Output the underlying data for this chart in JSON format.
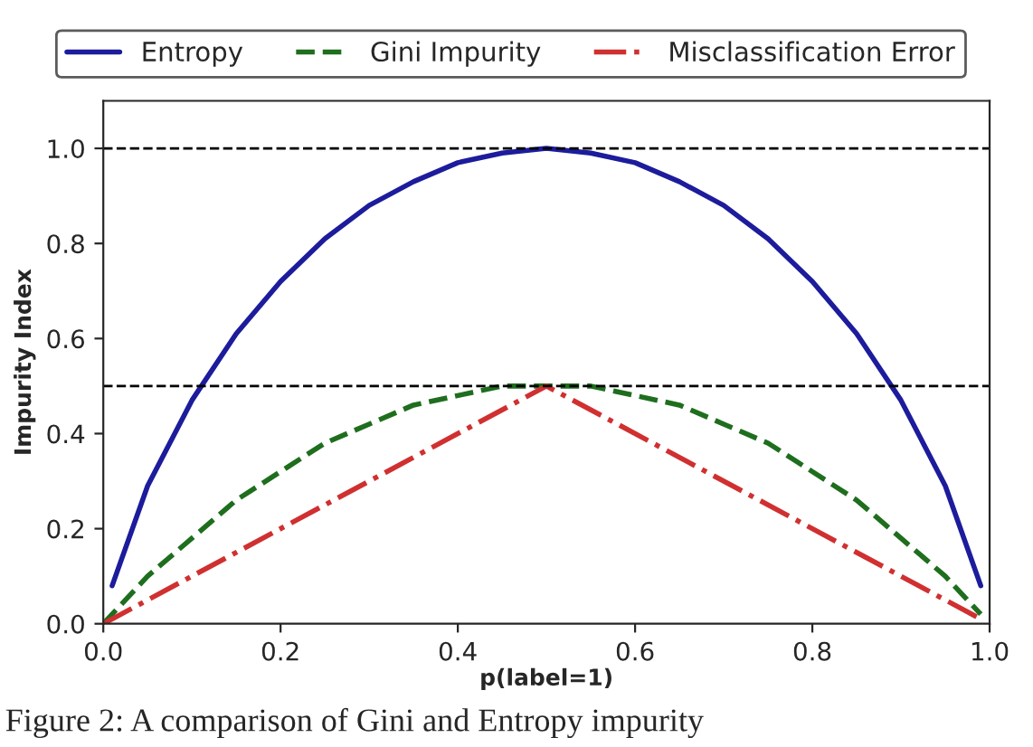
{
  "chart_data": {
    "type": "line",
    "xlabel": "p(label=1)",
    "ylabel": "Impurity Index",
    "series": [
      {
        "name": "Entropy",
        "color": "#1c1c9c",
        "line_style": "solid",
        "x": [
          0.01,
          0.05,
          0.1,
          0.15,
          0.2,
          0.25,
          0.3,
          0.35,
          0.4,
          0.45,
          0.5,
          0.55,
          0.6,
          0.65,
          0.7,
          0.75,
          0.8,
          0.85,
          0.9,
          0.95,
          0.99
        ],
        "values": [
          0.08,
          0.29,
          0.47,
          0.61,
          0.72,
          0.81,
          0.88,
          0.93,
          0.97,
          0.99,
          1.0,
          0.99,
          0.97,
          0.93,
          0.88,
          0.81,
          0.72,
          0.61,
          0.47,
          0.29,
          0.08
        ]
      },
      {
        "name": "Gini Impurity",
        "color": "#1e6e1e",
        "line_style": "dashed",
        "x": [
          0.0,
          0.05,
          0.1,
          0.15,
          0.2,
          0.25,
          0.3,
          0.35,
          0.4,
          0.45,
          0.5,
          0.55,
          0.6,
          0.65,
          0.7,
          0.75,
          0.8,
          0.85,
          0.9,
          0.95,
          0.99
        ],
        "values": [
          0.0,
          0.1,
          0.18,
          0.26,
          0.32,
          0.38,
          0.42,
          0.46,
          0.48,
          0.5,
          0.5,
          0.5,
          0.48,
          0.46,
          0.42,
          0.38,
          0.32,
          0.26,
          0.18,
          0.1,
          0.02
        ]
      },
      {
        "name": "Misclassification Error",
        "color": "#d03030",
        "line_style": "dotted",
        "x": [
          0.0,
          0.5,
          0.99
        ],
        "values": [
          0.0,
          0.5,
          0.01
        ]
      }
    ],
    "xlim": [
      0.0,
      1.0
    ],
    "xticks": [
      {
        "value": 0,
        "label": "0.0"
      },
      0.2,
      0.4,
      0.6,
      0.8,
      {
        "value": 1,
        "label": "1.0"
      }
    ],
    "ylim": [
      0.0,
      1.1
    ],
    "yticks": [
      {
        "value": 0,
        "label": "0.0"
      },
      0.2,
      0.4,
      0.6,
      0.8,
      {
        "value": 1,
        "label": "1.0"
      }
    ],
    "ref_lines": [
      {
        "axis": "y",
        "value": 1.0,
        "color": "#000000",
        "line_style": "dashed"
      },
      {
        "axis": "y",
        "value": 0.5,
        "color": "#000000",
        "line_style": "dashed"
      }
    ],
    "legend": "top",
    "grid": false,
    "annotations": [
      "Figure 2: A comparison of Gini and Entropy impurity"
    ]
  }
}
